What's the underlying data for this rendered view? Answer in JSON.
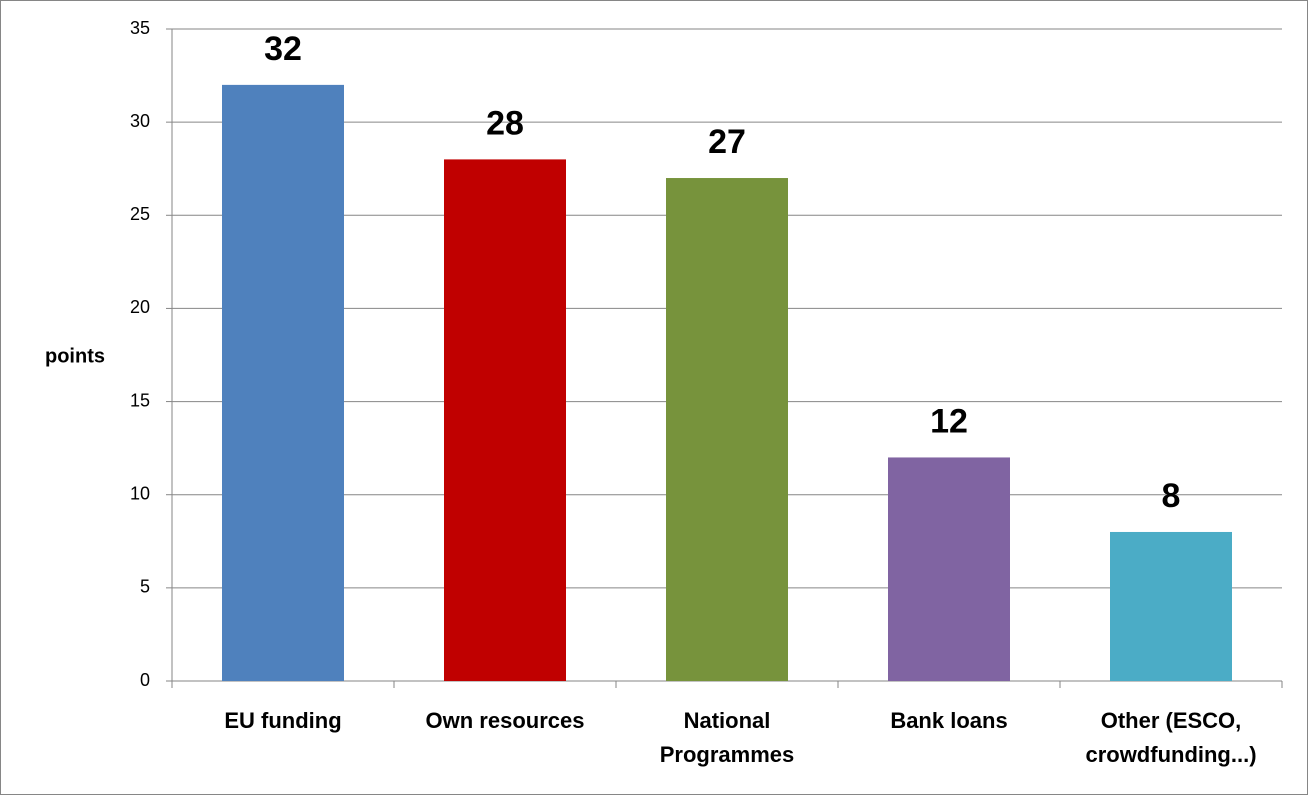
{
  "chart_data": {
    "type": "bar",
    "y_axis_label": "points",
    "categories": [
      "EU funding",
      "Own resources",
      "National Programmes",
      "Bank loans",
      "Other (ESCO, crowdfunding...)"
    ],
    "values": [
      32,
      28,
      27,
      12,
      8
    ],
    "colors": [
      "#4f81bd",
      "#c00000",
      "#77933c",
      "#8064a2",
      "#4bacc6"
    ],
    "ylim": [
      0,
      35
    ],
    "yticks": [
      0,
      5,
      10,
      15,
      20,
      25,
      30,
      35
    ],
    "grid": true,
    "data_labels": true
  }
}
